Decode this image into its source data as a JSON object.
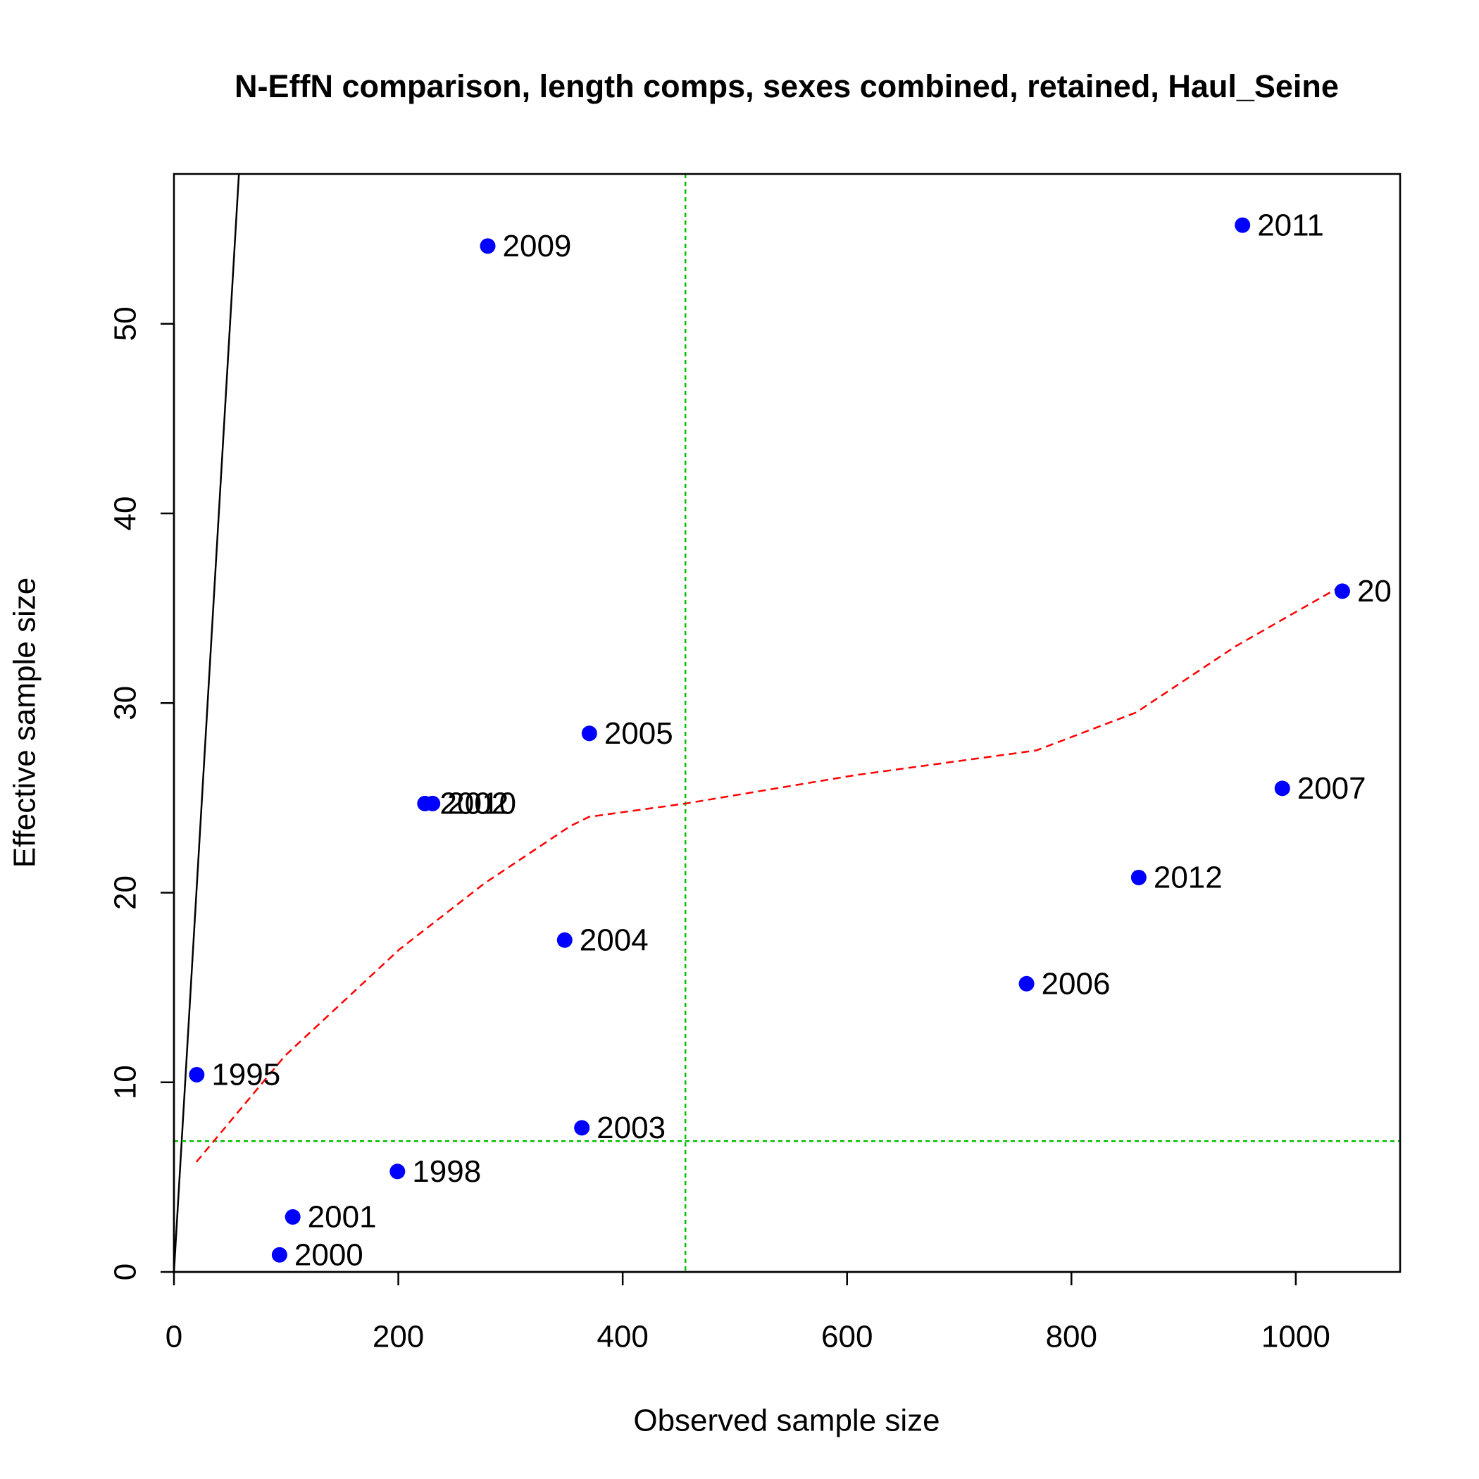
{
  "chart_data": {
    "type": "scatter",
    "title": "N-EffN comparison, length comps, sexes combined, retained, Haul_Seine",
    "xlabel": "Observed sample size",
    "ylabel": "Effective sample size",
    "xlim": [
      0,
      1093
    ],
    "ylim": [
      0,
      57.9
    ],
    "xticks": [
      0,
      200,
      400,
      600,
      800,
      1000
    ],
    "yticks": [
      0,
      10,
      20,
      30,
      40,
      50
    ],
    "color": "#0000ff",
    "x": [
      20.3,
      279.7,
      952.5,
      1041.5,
      370.3,
      223.7,
      230.5,
      988,
      860,
      348.3,
      760,
      363.6,
      199.2,
      105.9,
      94.1
    ],
    "values": [
      10.4,
      54.1,
      55.2,
      35.9,
      28.4,
      24.7,
      24.7,
      25.5,
      20.8,
      17.5,
      15.2,
      7.6,
      5.3,
      2.9,
      0.9
    ],
    "point_labels": [
      "1995",
      "2009",
      "2011",
      "20",
      "2005",
      "2002",
      "2010",
      "2007",
      "2012",
      "2004",
      "2006",
      "2003",
      "1998",
      "2001",
      "2000"
    ],
    "identity_line": true,
    "hline": 6.9,
    "vline": 455.9,
    "ref_color": "#00c000",
    "smoother": {
      "color": "#ff0000",
      "x": [
        20,
        99,
        200.8,
        277,
        353,
        370,
        456,
        607.6,
        768.6,
        857.6,
        946.6,
        1041.5
      ],
      "y": [
        5.8,
        11.4,
        17,
        20.5,
        23.5,
        24,
        24.7,
        26.2,
        27.5,
        29.5,
        33,
        36.2
      ]
    }
  }
}
